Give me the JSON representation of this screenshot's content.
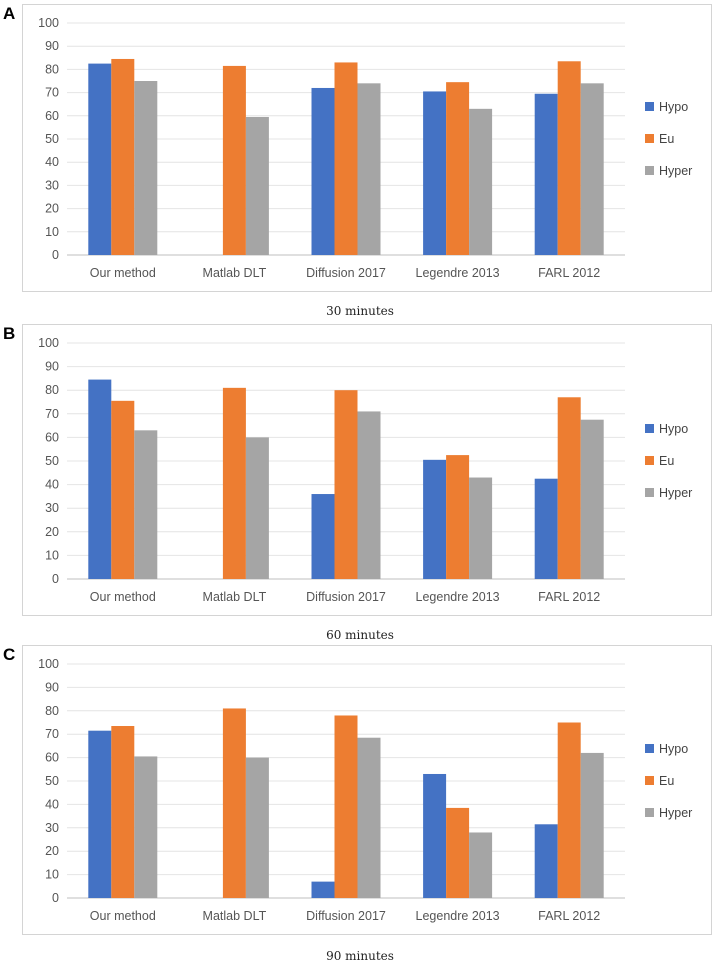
{
  "colors": {
    "Hypo": "#4472c4",
    "Eu": "#ed7d31",
    "Hyper": "#a5a5a5"
  },
  "chart_data": [
    {
      "type": "bar",
      "panel": "A",
      "caption": "30 minutes",
      "categories": [
        "Our method",
        "Matlab DLT",
        "Diffusion 2017",
        "Legendre 2013",
        "FARL 2012"
      ],
      "series": [
        {
          "name": "Hypo",
          "values": [
            82.5,
            null,
            72,
            70.5,
            69.5
          ]
        },
        {
          "name": "Eu",
          "values": [
            84.5,
            81.5,
            83,
            74.5,
            83.5
          ]
        },
        {
          "name": "Hyper",
          "values": [
            75,
            59.5,
            74,
            63,
            74
          ]
        }
      ],
      "ylim": [
        0,
        100
      ],
      "yticks": [
        0,
        10,
        20,
        30,
        40,
        50,
        60,
        70,
        80,
        90,
        100
      ],
      "legend": "right"
    },
    {
      "type": "bar",
      "panel": "B",
      "caption": "60 minutes",
      "categories": [
        "Our method",
        "Matlab DLT",
        "Diffusion 2017",
        "Legendre 2013",
        "FARL 2012"
      ],
      "series": [
        {
          "name": "Hypo",
          "values": [
            84.5,
            null,
            36,
            50.5,
            42.5
          ]
        },
        {
          "name": "Eu",
          "values": [
            75.5,
            81,
            80,
            52.5,
            77
          ]
        },
        {
          "name": "Hyper",
          "values": [
            63,
            60,
            71,
            43,
            67.5
          ]
        }
      ],
      "ylim": [
        0,
        100
      ],
      "yticks": [
        0,
        10,
        20,
        30,
        40,
        50,
        60,
        70,
        80,
        90,
        100
      ],
      "legend": "right"
    },
    {
      "type": "bar",
      "panel": "C",
      "caption": "90 minutes",
      "categories": [
        "Our method",
        "Matlab DLT",
        "Diffusion 2017",
        "Legendre 2013",
        "FARL 2012"
      ],
      "series": [
        {
          "name": "Hypo",
          "values": [
            71.5,
            null,
            7,
            53,
            31.5
          ]
        },
        {
          "name": "Eu",
          "values": [
            73.5,
            81,
            78,
            38.5,
            75
          ]
        },
        {
          "name": "Hyper",
          "values": [
            60.5,
            60,
            68.5,
            28,
            62
          ]
        }
      ],
      "ylim": [
        0,
        100
      ],
      "yticks": [
        0,
        10,
        20,
        30,
        40,
        50,
        60,
        70,
        80,
        90,
        100
      ],
      "legend": "right"
    }
  ]
}
